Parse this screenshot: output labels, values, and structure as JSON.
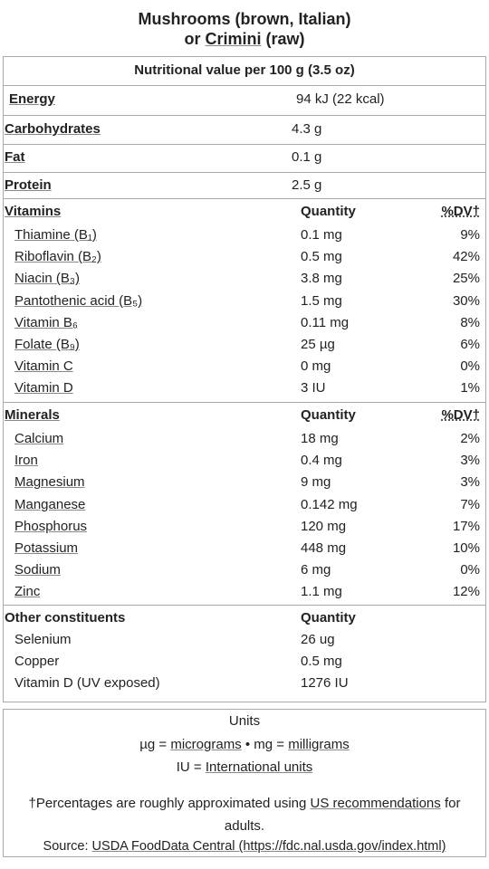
{
  "title": {
    "line1": "Mushrooms (brown, Italian)",
    "line2_prefix": "or ",
    "line2_link": "Crimini",
    "line2_suffix": " (raw)"
  },
  "table": {
    "caption": "Nutritional value per 100 g (3.5 oz)",
    "energy": {
      "label": "Energy",
      "value": "94 kJ (22 kcal)"
    },
    "macros": [
      {
        "label": "Carbohydrates",
        "value": "4.3 g"
      },
      {
        "label": "Fat",
        "value": "0.1 g"
      },
      {
        "label": "Protein",
        "value": "2.5 g"
      }
    ],
    "vitamins": {
      "header": "Vitamins",
      "quantity_header": "Quantity",
      "dv_header": "%DV†",
      "rows": [
        {
          "name": "Thiamine (B₁)",
          "quantity": "0.1 mg",
          "dv": "9%"
        },
        {
          "name": "Riboflavin (B₂)",
          "quantity": "0.5 mg",
          "dv": "42%"
        },
        {
          "name": "Niacin (B₃)",
          "quantity": "3.8 mg",
          "dv": "25%"
        },
        {
          "name": "Pantothenic acid (B₅)",
          "quantity": "1.5 mg",
          "dv": "30%"
        },
        {
          "name": "Vitamin B₆",
          "quantity": "0.11 mg",
          "dv": "8%"
        },
        {
          "name": "Folate (B₉)",
          "quantity": "25 µg",
          "dv": "6%"
        },
        {
          "name": "Vitamin C",
          "quantity": "0 mg",
          "dv": "0%"
        },
        {
          "name": "Vitamin D",
          "quantity": "3 IU",
          "dv": "1%"
        }
      ]
    },
    "minerals": {
      "header": "Minerals",
      "quantity_header": "Quantity",
      "dv_header": "%DV†",
      "rows": [
        {
          "name": "Calcium",
          "quantity": "18 mg",
          "dv": "2%"
        },
        {
          "name": "Iron",
          "quantity": "0.4 mg",
          "dv": "3%"
        },
        {
          "name": "Magnesium",
          "quantity": "9 mg",
          "dv": "3%"
        },
        {
          "name": "Manganese",
          "quantity": "0.142 mg",
          "dv": "7%"
        },
        {
          "name": "Phosphorus",
          "quantity": "120 mg",
          "dv": "17%"
        },
        {
          "name": "Potassium",
          "quantity": "448 mg",
          "dv": "10%"
        },
        {
          "name": "Sodium",
          "quantity": "6 mg",
          "dv": "0%"
        },
        {
          "name": "Zinc",
          "quantity": "1.1 mg",
          "dv": "12%"
        }
      ]
    },
    "other": {
      "header": "Other constituents",
      "quantity_header": "Quantity",
      "rows": [
        {
          "name": "Selenium",
          "quantity": "26 ug"
        },
        {
          "name": "Copper",
          "quantity": "0.5 mg"
        },
        {
          "name": "Vitamin D (UV exposed)",
          "quantity": "1276 IU"
        }
      ]
    }
  },
  "units": {
    "title": "Units",
    "line1": [
      "µg = ",
      "micrograms",
      " • mg = ",
      "milligrams"
    ],
    "line2": [
      "IU = ",
      "International units"
    ]
  },
  "footnote": {
    "line": [
      "†Percentages are roughly approximated using ",
      "US recommendations",
      " for adults."
    ],
    "source": [
      "Source: ",
      "USDA FoodData Central (https://fdc.nal.usda.gov/index.html)"
    ]
  }
}
